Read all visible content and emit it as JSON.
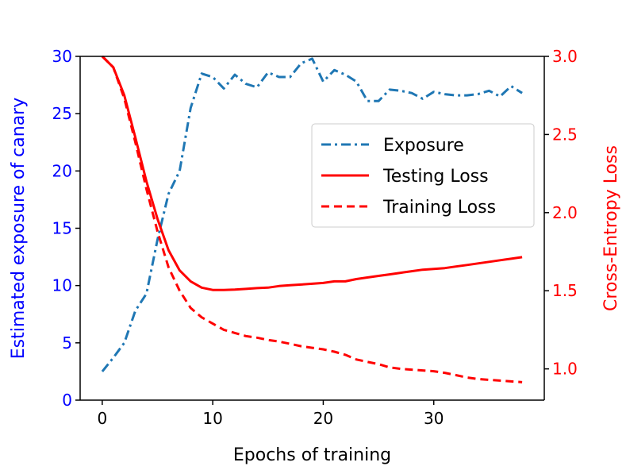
{
  "chart_data": {
    "type": "line",
    "title": "",
    "xlabel": "Epochs of training",
    "ylabel_left": "Estimated exposure of canary",
    "ylabel_right": "Cross-Entropy Loss",
    "xlim": [
      -2,
      40
    ],
    "ylim_left": [
      0,
      30
    ],
    "ylim_right": [
      0.8,
      3.0
    ],
    "x_ticks": [
      0,
      10,
      20,
      30
    ],
    "y_ticks_left": [
      0,
      5,
      10,
      15,
      20,
      25,
      30
    ],
    "y_ticks_right": [
      "1.0",
      "1.5",
      "2.0",
      "2.5",
      "3.0"
    ],
    "legend_position": "center-right",
    "colors": {
      "left_axis": "#0000ff",
      "right_axis": "#ff0000",
      "exposure": "#1f77b4",
      "loss": "#ff0000"
    },
    "x": [
      0,
      1,
      2,
      3,
      4,
      5,
      6,
      7,
      8,
      9,
      10,
      11,
      12,
      13,
      14,
      15,
      16,
      17,
      18,
      19,
      20,
      21,
      22,
      23,
      24,
      25,
      26,
      27,
      28,
      29,
      30,
      31,
      32,
      33,
      34,
      35,
      36,
      37,
      38
    ],
    "series": [
      {
        "name": "Exposure",
        "axis": "left",
        "style": "dashdot",
        "color": "#1f77b4",
        "values": [
          2.5,
          3.7,
          5.0,
          7.8,
          9.3,
          14.0,
          18.0,
          20.0,
          25.5,
          28.5,
          28.2,
          27.2,
          28.4,
          27.6,
          27.3,
          28.6,
          28.2,
          28.2,
          29.4,
          29.8,
          27.8,
          28.8,
          28.4,
          27.8,
          26.1,
          26.1,
          27.1,
          27.0,
          26.8,
          26.3,
          26.9,
          26.7,
          26.6,
          26.6,
          26.7,
          27.0,
          26.5,
          27.4,
          26.8
        ]
      },
      {
        "name": "Testing Loss",
        "axis": "right",
        "style": "solid",
        "color": "#ff0000",
        "values": [
          3.0,
          2.93,
          2.75,
          2.48,
          2.2,
          1.96,
          1.76,
          1.63,
          1.56,
          1.52,
          1.505,
          1.505,
          1.507,
          1.512,
          1.517,
          1.52,
          1.53,
          1.535,
          1.54,
          1.545,
          1.55,
          1.56,
          1.56,
          1.575,
          1.585,
          1.595,
          1.605,
          1.615,
          1.625,
          1.635,
          1.64,
          1.645,
          1.655,
          1.665,
          1.675,
          1.685,
          1.695,
          1.705,
          1.715
        ]
      },
      {
        "name": "Training Loss",
        "axis": "right",
        "style": "dashed",
        "color": "#ff0000",
        "values": [
          3.0,
          2.93,
          2.73,
          2.45,
          2.15,
          1.88,
          1.65,
          1.5,
          1.39,
          1.33,
          1.29,
          1.25,
          1.23,
          1.21,
          1.2,
          1.185,
          1.175,
          1.16,
          1.145,
          1.135,
          1.125,
          1.11,
          1.09,
          1.06,
          1.045,
          1.03,
          1.01,
          1.0,
          0.995,
          0.99,
          0.985,
          0.975,
          0.96,
          0.945,
          0.935,
          0.93,
          0.925,
          0.92,
          0.915
        ]
      }
    ]
  }
}
